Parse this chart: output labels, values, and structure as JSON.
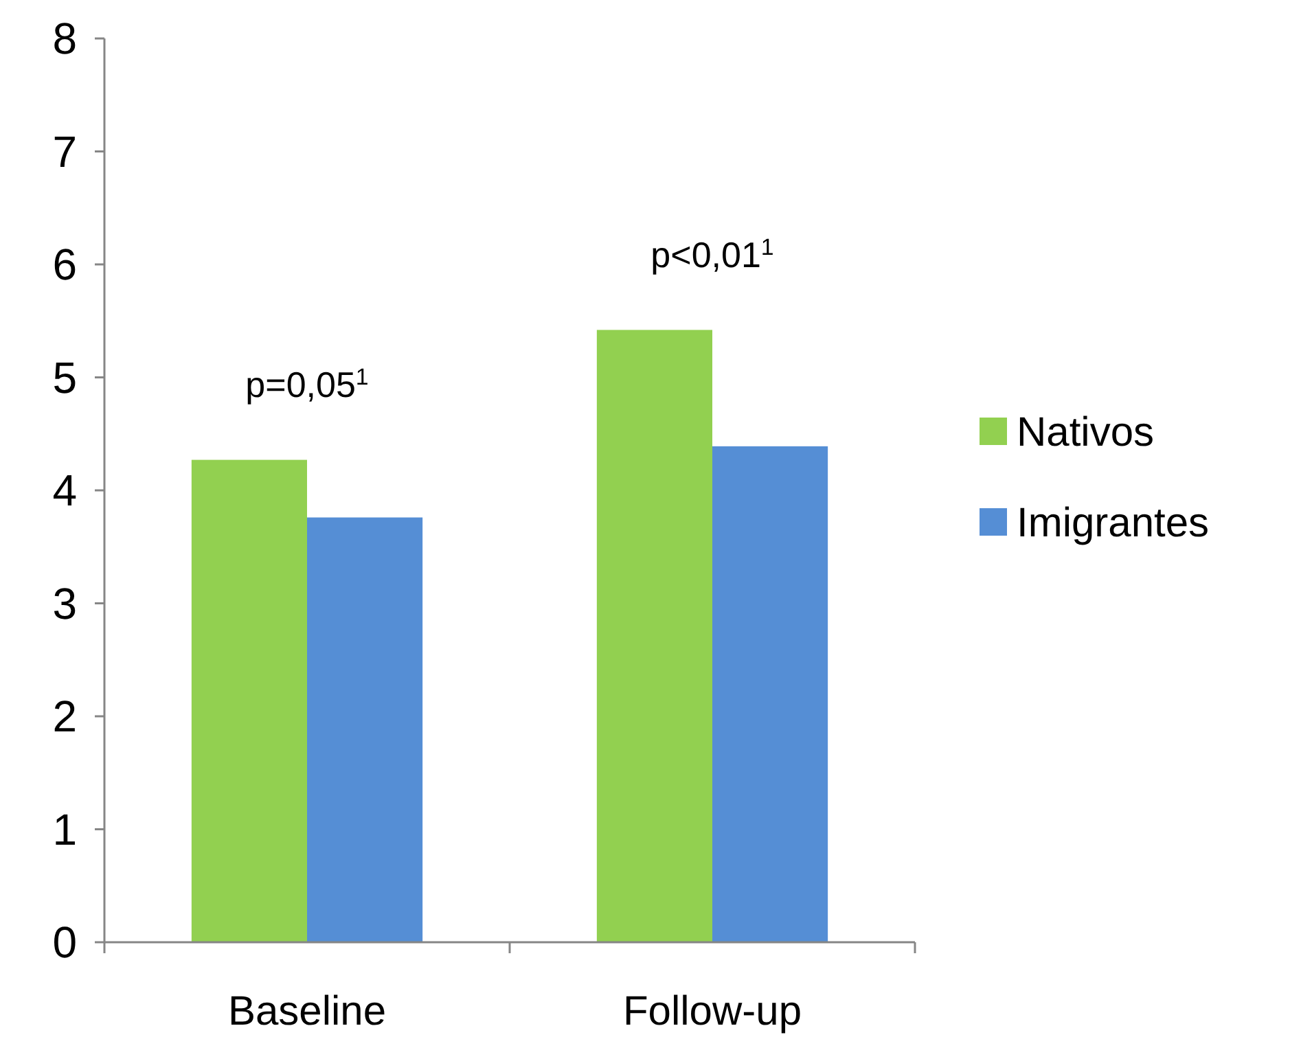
{
  "chart_data": {
    "type": "bar",
    "categories": [
      "Baseline",
      "Follow-up"
    ],
    "series": [
      {
        "name": "Nativos",
        "color": "#92d050",
        "values": [
          4.27,
          5.42
        ]
      },
      {
        "name": "Imigrantes",
        "color": "#558ed5",
        "values": [
          3.76,
          4.39
        ]
      }
    ],
    "ylim": [
      0,
      8
    ],
    "yticks": [
      0,
      1,
      2,
      3,
      4,
      5,
      6,
      7,
      8
    ],
    "grid": false,
    "legend": "right",
    "annotations": [
      "p=0,05$^{1}$",
      "p<0,01$^{1}$"
    ]
  }
}
